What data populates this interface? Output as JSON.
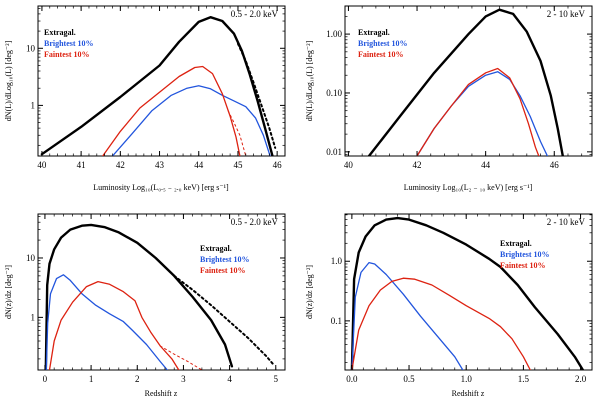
{
  "chart_data": [
    {
      "id": "p1",
      "type": "line",
      "xscale": "linear",
      "yscale": "log",
      "xlim": [
        39.9,
        46.2
      ],
      "ylim": [
        0.13,
        55
      ],
      "band_label": "0.5 - 2.0 keV",
      "ylabel": "dN(L)/dLog₁₀(L) [deg⁻²]",
      "xlabel": "Luminosity  Log₁₀(L₀.₅ ₋ ₂.₀ keV) [erg s⁻¹]",
      "xticks": [
        40,
        41,
        42,
        43,
        44,
        45,
        46
      ],
      "xtick_labels": [
        "40",
        "41",
        "42",
        "43",
        "44",
        "45",
        "46"
      ],
      "yticks": [
        1,
        10
      ],
      "ytick_labels": [
        "1",
        "10"
      ],
      "legend": [
        "Extragal.",
        "Brightest 10%",
        "Faintest 10%"
      ],
      "series": [
        {
          "name": "Extragal.",
          "color": "#000000",
          "width": 2.4,
          "dash": "",
          "points": [
            [
              40.0,
              0.14
            ],
            [
              41.0,
              0.42
            ],
            [
              42.0,
              1.4
            ],
            [
              43.0,
              5.0
            ],
            [
              43.5,
              13
            ],
            [
              44.0,
              29
            ],
            [
              44.3,
              35
            ],
            [
              44.6,
              30
            ],
            [
              44.9,
              18
            ],
            [
              45.1,
              9
            ],
            [
              45.3,
              3.5
            ],
            [
              45.5,
              1.2
            ],
            [
              45.7,
              0.38
            ],
            [
              45.88,
              0.13
            ]
          ]
        },
        {
          "name": "Extragal. extrapolation",
          "color": "#000000",
          "width": 2.0,
          "dash": "2,3",
          "points": [
            [
              45.0,
              12
            ],
            [
              45.2,
              6
            ],
            [
              45.4,
              2.5
            ],
            [
              45.6,
              1.0
            ],
            [
              45.8,
              0.4
            ],
            [
              45.95,
              0.18
            ]
          ]
        },
        {
          "name": "Brightest 10%",
          "color": "#2255dd",
          "width": 1.3,
          "dash": "",
          "points": [
            [
              41.8,
              0.13
            ],
            [
              42.3,
              0.32
            ],
            [
              42.8,
              0.8
            ],
            [
              43.3,
              1.5
            ],
            [
              43.7,
              2.0
            ],
            [
              44.0,
              2.2
            ],
            [
              44.3,
              1.95
            ],
            [
              44.6,
              1.5
            ],
            [
              44.9,
              1.2
            ],
            [
              45.2,
              0.95
            ],
            [
              45.45,
              0.6
            ],
            [
              45.65,
              0.3
            ],
            [
              45.82,
              0.13
            ]
          ]
        },
        {
          "name": "Faintest 10%",
          "color": "#dd2211",
          "width": 1.3,
          "dash": "",
          "points": [
            [
              41.55,
              0.13
            ],
            [
              42.0,
              0.35
            ],
            [
              42.5,
              0.9
            ],
            [
              43.0,
              1.7
            ],
            [
              43.5,
              3.2
            ],
            [
              43.9,
              4.6
            ],
            [
              44.1,
              4.8
            ],
            [
              44.35,
              3.6
            ],
            [
              44.6,
              1.6
            ],
            [
              44.8,
              0.65
            ],
            [
              44.95,
              0.28
            ],
            [
              45.05,
              0.13
            ]
          ]
        },
        {
          "name": "Faintest extrapolation",
          "color": "#dd2211",
          "width": 1.0,
          "dash": "2,3",
          "points": [
            [
              44.75,
              0.8
            ],
            [
              44.9,
              0.5
            ],
            [
              45.05,
              0.3
            ],
            [
              45.2,
              0.13
            ]
          ]
        }
      ]
    },
    {
      "id": "p2",
      "type": "line",
      "xscale": "linear",
      "yscale": "log",
      "xlim": [
        39.9,
        47.1
      ],
      "ylim": [
        0.0085,
        3.0
      ],
      "band_label": "2 - 10 keV",
      "ylabel": "dN(L)/dLog₁₀(L) [deg⁻²]",
      "xlabel": "Luminosity  Log₁₀(L₂ ₋ ₁₀ keV) [erg s⁻¹]",
      "xticks": [
        40,
        42,
        44,
        46
      ],
      "xtick_labels": [
        "40",
        "42",
        "44",
        "46"
      ],
      "yticks": [
        0.01,
        0.1,
        1.0
      ],
      "ytick_labels": [
        "0.01",
        "0.10",
        "1.00"
      ],
      "legend": [
        "Extragal.",
        "Brightest 10%",
        "Faintest 10%"
      ],
      "series": [
        {
          "name": "Extragal.",
          "color": "#000000",
          "width": 2.4,
          "dash": "",
          "points": [
            [
              40.6,
              0.0085
            ],
            [
              41.5,
              0.04
            ],
            [
              42.5,
              0.22
            ],
            [
              43.5,
              1.0
            ],
            [
              44.0,
              2.0
            ],
            [
              44.4,
              2.6
            ],
            [
              44.8,
              2.2
            ],
            [
              45.2,
              1.1
            ],
            [
              45.6,
              0.35
            ],
            [
              45.9,
              0.09
            ],
            [
              46.1,
              0.025
            ],
            [
              46.25,
              0.0085
            ]
          ]
        },
        {
          "name": "Brightest 10%",
          "color": "#2255dd",
          "width": 1.3,
          "dash": "",
          "points": [
            [
              42.0,
              0.0085
            ],
            [
              42.5,
              0.025
            ],
            [
              43.0,
              0.06
            ],
            [
              43.5,
              0.13
            ],
            [
              44.0,
              0.2
            ],
            [
              44.35,
              0.23
            ],
            [
              44.7,
              0.17
            ],
            [
              45.0,
              0.09
            ],
            [
              45.3,
              0.04
            ],
            [
              45.6,
              0.015
            ],
            [
              45.8,
              0.0085
            ]
          ]
        },
        {
          "name": "Faintest 10%",
          "color": "#dd2211",
          "width": 1.3,
          "dash": "",
          "points": [
            [
              42.0,
              0.0085
            ],
            [
              42.5,
              0.025
            ],
            [
              43.0,
              0.06
            ],
            [
              43.5,
              0.14
            ],
            [
              44.0,
              0.22
            ],
            [
              44.35,
              0.26
            ],
            [
              44.7,
              0.18
            ],
            [
              45.0,
              0.08
            ],
            [
              45.25,
              0.03
            ],
            [
              45.45,
              0.012
            ],
            [
              45.55,
              0.0085
            ]
          ]
        }
      ]
    },
    {
      "id": "p3",
      "type": "line",
      "xscale": "linear",
      "yscale": "log",
      "xlim": [
        -0.15,
        5.2
      ],
      "ylim": [
        0.13,
        55
      ],
      "band_label": "0.5 - 2.0 keV",
      "ylabel": "dN(z)/dz [deg⁻²]",
      "xlabel": "Redshift  z",
      "xticks": [
        0,
        1,
        2,
        3,
        4,
        5
      ],
      "xtick_labels": [
        "0",
        "1",
        "2",
        "3",
        "4",
        "5"
      ],
      "yticks": [
        1,
        10
      ],
      "ytick_labels": [
        "1",
        "10"
      ],
      "legend": [
        "Extragal.",
        "Brightest 10%",
        "Faintest 10%"
      ],
      "series": [
        {
          "name": "Extragal.",
          "color": "#000000",
          "width": 2.4,
          "dash": "",
          "points": [
            [
              0.02,
              0.13
            ],
            [
              0.05,
              3.5
            ],
            [
              0.1,
              8
            ],
            [
              0.2,
              14
            ],
            [
              0.35,
              22
            ],
            [
              0.55,
              30
            ],
            [
              0.8,
              35
            ],
            [
              1.0,
              36
            ],
            [
              1.3,
              33
            ],
            [
              1.6,
              27
            ],
            [
              2.0,
              18
            ],
            [
              2.4,
              10
            ],
            [
              2.8,
              5
            ],
            [
              3.2,
              2.2
            ],
            [
              3.6,
              0.9
            ],
            [
              3.9,
              0.35
            ],
            [
              4.05,
              0.15
            ]
          ]
        },
        {
          "name": "Extragal. extrapolation",
          "color": "#000000",
          "width": 2.0,
          "dash": "2,3",
          "points": [
            [
              2.8,
              5
            ],
            [
              3.2,
              2.9
            ],
            [
              3.6,
              1.6
            ],
            [
              4.0,
              0.85
            ],
            [
              4.4,
              0.45
            ],
            [
              4.8,
              0.22
            ],
            [
              4.95,
              0.16
            ]
          ]
        },
        {
          "name": "Brightest 10%",
          "color": "#2255dd",
          "width": 1.3,
          "dash": "",
          "points": [
            [
              0.03,
              0.13
            ],
            [
              0.06,
              0.8
            ],
            [
              0.12,
              2.5
            ],
            [
              0.25,
              4.5
            ],
            [
              0.4,
              5.2
            ],
            [
              0.55,
              4.2
            ],
            [
              0.8,
              2.5
            ],
            [
              1.1,
              1.6
            ],
            [
              1.4,
              1.15
            ],
            [
              1.7,
              0.85
            ],
            [
              1.9,
              0.6
            ],
            [
              2.2,
              0.35
            ],
            [
              2.5,
              0.18
            ],
            [
              2.65,
              0.13
            ]
          ]
        },
        {
          "name": "Faintest 10%",
          "color": "#dd2211",
          "width": 1.3,
          "dash": "",
          "points": [
            [
              0.1,
              0.13
            ],
            [
              0.2,
              0.4
            ],
            [
              0.35,
              0.9
            ],
            [
              0.6,
              1.8
            ],
            [
              0.9,
              3.3
            ],
            [
              1.15,
              4.0
            ],
            [
              1.4,
              3.6
            ],
            [
              1.7,
              2.7
            ],
            [
              1.95,
              1.9
            ],
            [
              2.1,
              1.0
            ],
            [
              2.3,
              0.55
            ],
            [
              2.5,
              0.33
            ],
            [
              2.75,
              0.2
            ],
            [
              2.9,
              0.13
            ]
          ]
        },
        {
          "name": "Faintest extrapolation",
          "color": "#dd2211",
          "width": 1.0,
          "dash": "2,3",
          "points": [
            [
              2.5,
              0.33
            ],
            [
              2.8,
              0.24
            ],
            [
              3.1,
              0.18
            ],
            [
              3.4,
              0.13
            ]
          ]
        }
      ]
    },
    {
      "id": "p4",
      "type": "line",
      "xscale": "linear",
      "yscale": "log",
      "xlim": [
        -0.06,
        2.1
      ],
      "ylim": [
        0.015,
        6.2
      ],
      "band_label": "2 - 10 keV",
      "ylabel": "dN(z)/dz [deg⁻²]",
      "xlabel": "Redshift  z",
      "xticks": [
        0.0,
        0.5,
        1.0,
        1.5,
        2.0
      ],
      "xtick_labels": [
        "0.0",
        "0.5",
        "1.0",
        "1.5",
        "2.0"
      ],
      "yticks": [
        0.1,
        1.0
      ],
      "ytick_labels": [
        "0.1",
        "1.0"
      ],
      "legend": [
        "Extragal.",
        "Brightest 10%",
        "Faintest 10%"
      ],
      "series": [
        {
          "name": "Extragal.",
          "color": "#000000",
          "width": 2.4,
          "dash": "",
          "points": [
            [
              0.0,
              0.015
            ],
            [
              0.02,
              0.5
            ],
            [
              0.06,
              1.4
            ],
            [
              0.12,
              2.6
            ],
            [
              0.2,
              4.0
            ],
            [
              0.3,
              5.0
            ],
            [
              0.4,
              5.3
            ],
            [
              0.5,
              5.0
            ],
            [
              0.65,
              4.0
            ],
            [
              0.8,
              3.0
            ],
            [
              1.0,
              1.9
            ],
            [
              1.2,
              1.1
            ],
            [
              1.3,
              0.8
            ],
            [
              1.45,
              0.4
            ],
            [
              1.6,
              0.17
            ],
            [
              1.8,
              0.06
            ],
            [
              1.95,
              0.025
            ],
            [
              2.02,
              0.015
            ]
          ]
        },
        {
          "name": "Brightest 10%",
          "color": "#2255dd",
          "width": 1.3,
          "dash": "",
          "points": [
            [
              0.0,
              0.015
            ],
            [
              0.03,
              0.25
            ],
            [
              0.08,
              0.65
            ],
            [
              0.15,
              0.95
            ],
            [
              0.2,
              0.9
            ],
            [
              0.3,
              0.6
            ],
            [
              0.45,
              0.28
            ],
            [
              0.6,
              0.12
            ],
            [
              0.75,
              0.055
            ],
            [
              0.9,
              0.025
            ],
            [
              0.97,
              0.015
            ]
          ]
        },
        {
          "name": "Faintest 10%",
          "color": "#dd2211",
          "width": 1.3,
          "dash": "",
          "points": [
            [
              0.0,
              0.015
            ],
            [
              0.06,
              0.07
            ],
            [
              0.15,
              0.18
            ],
            [
              0.25,
              0.33
            ],
            [
              0.35,
              0.46
            ],
            [
              0.45,
              0.52
            ],
            [
              0.55,
              0.5
            ],
            [
              0.7,
              0.4
            ],
            [
              0.85,
              0.27
            ],
            [
              1.0,
              0.18
            ],
            [
              1.2,
              0.11
            ],
            [
              1.3,
              0.08
            ],
            [
              1.4,
              0.05
            ],
            [
              1.5,
              0.025
            ],
            [
              1.56,
              0.015
            ]
          ]
        }
      ]
    }
  ]
}
